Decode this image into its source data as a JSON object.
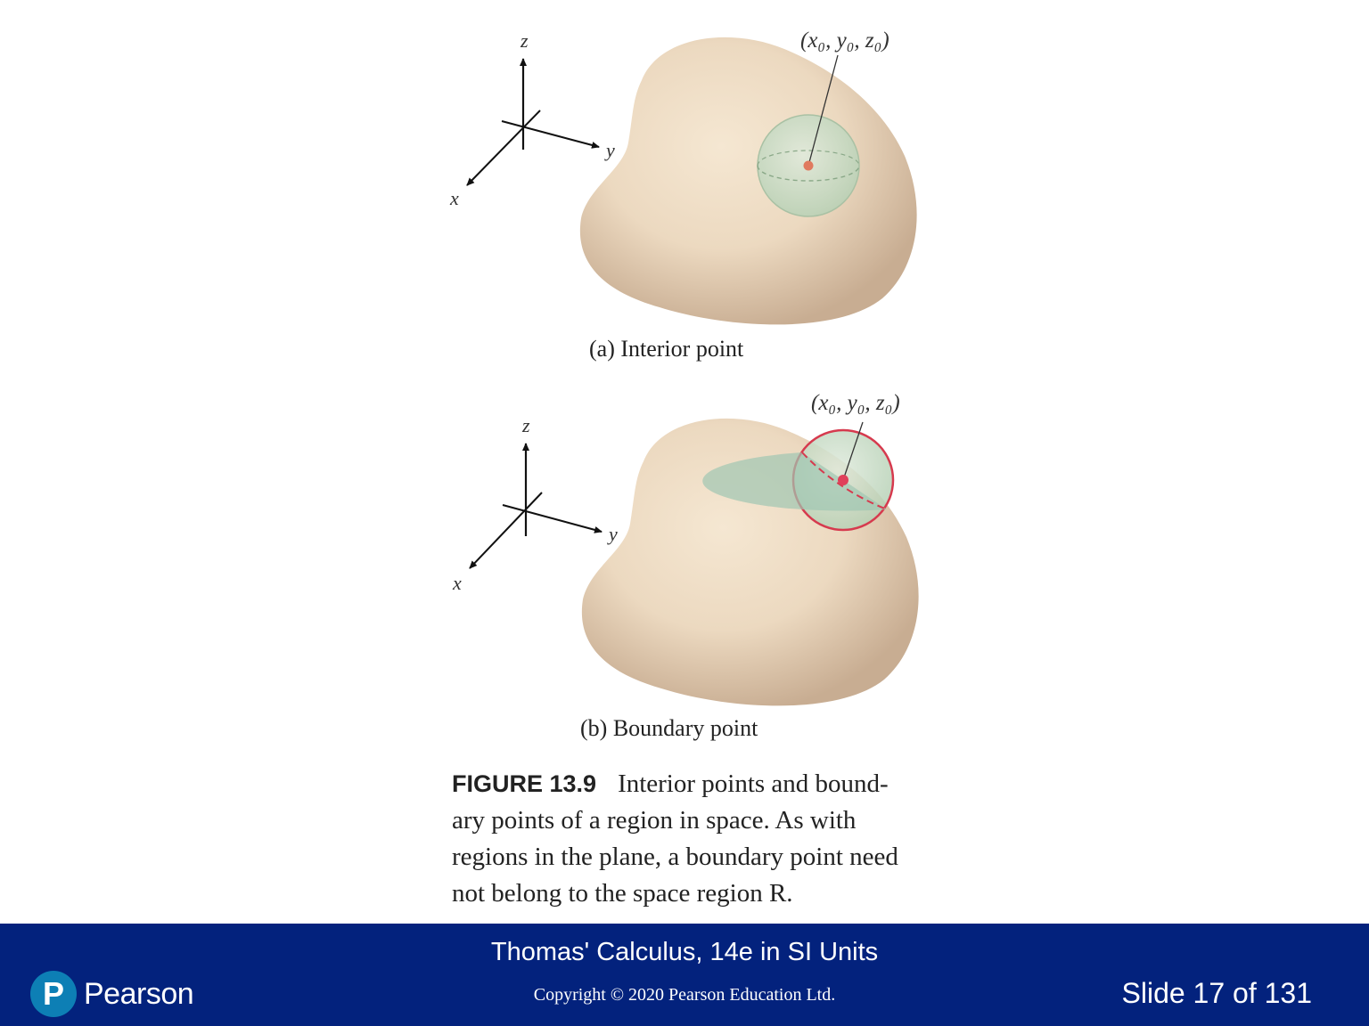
{
  "panel_a": {
    "axis_x": "x",
    "axis_y": "y",
    "axis_z": "z",
    "point_label": "(x₀, y₀, z₀)",
    "caption": "(a) Interior point"
  },
  "panel_b": {
    "axis_x": "x",
    "axis_y": "y",
    "axis_z": "z",
    "point_label": "(x₀, y₀, z₀)",
    "caption": "(b) Boundary point"
  },
  "figure_caption": {
    "number": "FIGURE 13.9",
    "lines": [
      "Interior points and bound-",
      "ary points of a region in space. As with",
      "regions in the plane, a boundary point need",
      "not belong to the space region R."
    ]
  },
  "footer": {
    "book_title": "Thomas' Calculus, 14e in SI Units",
    "copyright": "Copyright © 2020 Pearson Education Ltd.",
    "slide_number": "Slide 17 of 131",
    "logo_letter": "P",
    "logo_text": "Pearson"
  },
  "colors": {
    "region_fill": "#d9c3a6",
    "sphere_fill": "#c8dcc0",
    "boundary_red": "#d63a4e",
    "footer_bg": "#03227d",
    "logo_blue": "#0d7fb5"
  }
}
